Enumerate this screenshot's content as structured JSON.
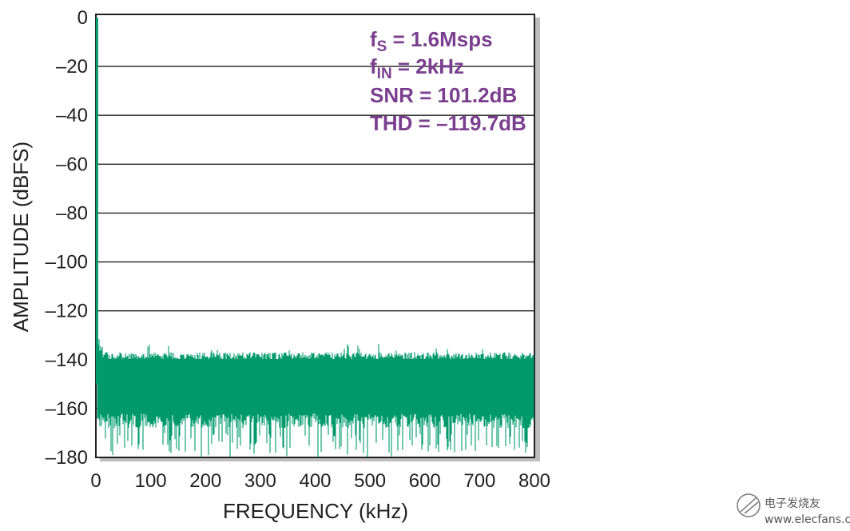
{
  "chart_data": {
    "type": "line",
    "title": "",
    "xlabel": "FREQUENCY (kHz)",
    "ylabel": "AMPLITUDE (dBFS)",
    "xlim": [
      0,
      800
    ],
    "ylim": [
      -180,
      0
    ],
    "x_ticks": [
      "0",
      "100",
      "200",
      "300",
      "400",
      "500",
      "600",
      "700",
      "800"
    ],
    "y_ticks": [
      "0",
      "–20",
      "–40",
      "–60",
      "–80",
      "–100",
      "–120",
      "–140",
      "–160",
      "–180"
    ],
    "grid": true,
    "series_color": "#009b6b",
    "fundamental": {
      "freq_khz": 2,
      "amplitude_dbfs": 0
    },
    "noise_floor": {
      "typical_peak_dbfs": -137,
      "typical_mid_dbfs": -150,
      "typical_dip_dbfs": -165,
      "deepest_dips_dbfs": -180,
      "near_dc_skirt_dbfs": -123
    },
    "annotations": [
      {
        "main": "f",
        "sub": "S",
        "rest": " = 1.6Msps"
      },
      {
        "main": "f",
        "sub": "IN",
        "rest": " = 2kHz"
      },
      {
        "main": "SNR = 101.2dB",
        "sub": "",
        "rest": ""
      },
      {
        "main": "THD = –119.7dB",
        "sub": "",
        "rest": ""
      }
    ],
    "annotation_color": "#7b3f8f"
  },
  "watermark": {
    "text": "电子发烧友",
    "url": "www.elecfans.com"
  }
}
